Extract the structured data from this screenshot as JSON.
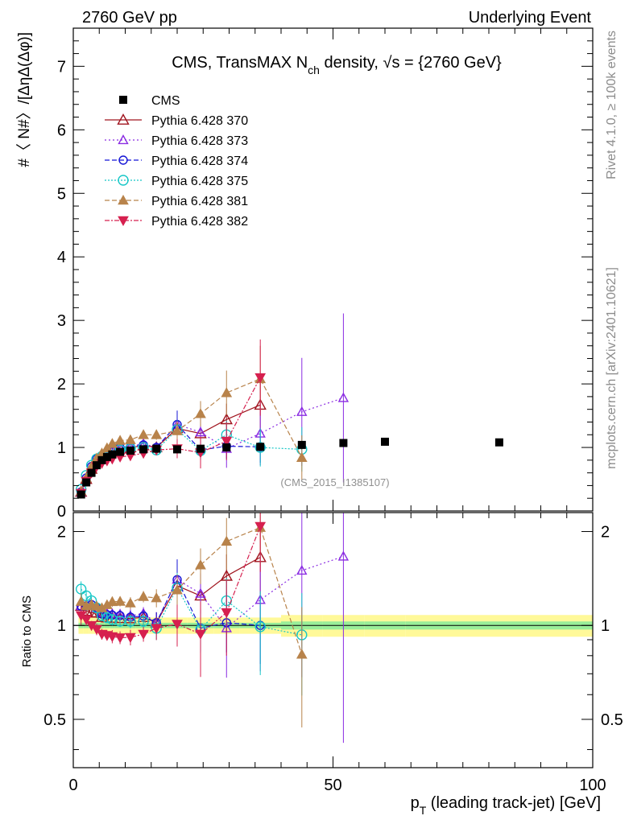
{
  "header": {
    "left": "2760 GeV pp",
    "right": "Underlying Event"
  },
  "side_labels": {
    "top": "Rivet 4.1.0, ≥ 100k events",
    "bottom": "mcplots.cern.ch [arXiv:2401.10621]"
  },
  "chart_data": {
    "type": "scatter",
    "title": "CMS, TransMAX N",
    "title_sub": "ch",
    "title_tail": " density, √s = {2760 GeV}",
    "ylabel": "#〈 N#〉/[ΔηΔ(Δφ)]",
    "xlabel": "p",
    "xlabel_sub": "T",
    "xlabel_tail": " (leading track-jet) [GeV]",
    "ratio_ylabel": "Ratio to CMS",
    "analysis_tag": "(CMS_2015_I1385107)",
    "xlim": [
      0,
      100
    ],
    "ylim": [
      0,
      7.6
    ],
    "ratio_ylim": [
      0.35,
      2.3
    ],
    "x_ticks": [
      "0",
      "50",
      "100"
    ],
    "y_ticks": [
      "0",
      "1",
      "2",
      "3",
      "4",
      "5",
      "6",
      "7"
    ],
    "ratio_ticks": [
      "0.5",
      "1",
      "2"
    ],
    "data": {
      "name": "CMS",
      "color": "#000000",
      "x": [
        1.5,
        2.5,
        3.5,
        4.5,
        5.5,
        6.5,
        7.5,
        9,
        11,
        13.5,
        16,
        20,
        24.5,
        29.5,
        36,
        44,
        52,
        60,
        82
      ],
      "y": [
        0.26,
        0.45,
        0.6,
        0.72,
        0.8,
        0.85,
        0.89,
        0.93,
        0.95,
        0.97,
        0.98,
        0.97,
        0.98,
        1.0,
        1.01,
        1.04,
        1.07,
        1.09,
        1.08
      ]
    },
    "band_edges": [
      1.0,
      2.0,
      3.0,
      4.0,
      5.0,
      6.0,
      7.0,
      8.0,
      10.0,
      12.0,
      15.0,
      17.0,
      22.0,
      27.0,
      32.0,
      40.0,
      48.0,
      56.0,
      64.0,
      100.0
    ],
    "band_stat": [
      0.02,
      0.02,
      0.02,
      0.02,
      0.02,
      0.02,
      0.02,
      0.02,
      0.02,
      0.02,
      0.02,
      0.02,
      0.02,
      0.02,
      0.02,
      0.03,
      0.03,
      0.03,
      0.03
    ],
    "band_total": [
      0.06,
      0.06,
      0.06,
      0.06,
      0.06,
      0.06,
      0.06,
      0.06,
      0.06,
      0.06,
      0.06,
      0.06,
      0.06,
      0.06,
      0.06,
      0.08,
      0.08,
      0.08,
      0.08
    ],
    "series": [
      {
        "name": "Pythia 6.428 370",
        "color": "#a0141e",
        "marker": "tri-open",
        "dash": "",
        "msize": 13,
        "x": [
          1.5,
          2.5,
          3.5,
          4.5,
          5.5,
          6.5,
          7.5,
          9,
          11,
          13.5,
          16,
          20,
          24.5,
          29.5,
          36
        ],
        "y": [
          0.3,
          0.5,
          0.66,
          0.79,
          0.85,
          0.9,
          0.94,
          0.98,
          1.0,
          1.03,
          1.0,
          1.3,
          1.22,
          1.44,
          1.67
        ],
        "err": [
          0.02,
          0.02,
          0.02,
          0.03,
          0.03,
          0.03,
          0.04,
          0.04,
          0.05,
          0.05,
          0.08,
          0.15,
          0.15,
          0.25,
          0.4
        ]
      },
      {
        "name": "Pythia 6.428 373",
        "color": "#8a2be2",
        "marker": "tri-open",
        "dash": "2,3",
        "msize": 11,
        "x": [
          1.5,
          2.5,
          3.5,
          4.5,
          5.5,
          6.5,
          7.5,
          9,
          11,
          13.5,
          16,
          20,
          24.5,
          29.5,
          36,
          44,
          52
        ],
        "y": [
          0.3,
          0.52,
          0.7,
          0.82,
          0.88,
          0.93,
          0.97,
          1.01,
          1.02,
          1.06,
          1.0,
          1.36,
          1.24,
          0.98,
          1.22,
          1.56,
          1.78
        ],
        "err": [
          0.02,
          0.02,
          0.02,
          0.03,
          0.03,
          0.03,
          0.04,
          0.04,
          0.05,
          0.05,
          0.08,
          0.18,
          0.2,
          0.3,
          0.5,
          0.85,
          1.33
        ]
      },
      {
        "name": "Pythia 6.428 374",
        "color": "#1515d6",
        "marker": "circ-open",
        "dash": "6,3",
        "msize": 10,
        "x": [
          1.5,
          2.5,
          3.5,
          4.5,
          5.5,
          6.5,
          7.5,
          9,
          11,
          13.5,
          16,
          20,
          24.5,
          29.5,
          36
        ],
        "y": [
          0.3,
          0.52,
          0.7,
          0.82,
          0.87,
          0.92,
          0.96,
          1.0,
          1.01,
          1.04,
          1.0,
          1.36,
          0.96,
          1.02,
          1.01
        ],
        "err": [
          0.02,
          0.02,
          0.02,
          0.03,
          0.03,
          0.03,
          0.04,
          0.04,
          0.05,
          0.05,
          0.08,
          0.22,
          0.15,
          0.2,
          0.25
        ]
      },
      {
        "name": "Pythia 6.428 375",
        "color": "#17c7c7",
        "marker": "circ-open",
        "dash": "2,2",
        "msize": 12,
        "x": [
          1.5,
          2.5,
          3.5,
          4.5,
          5.5,
          6.5,
          7.5,
          9,
          11,
          13.5,
          16,
          20,
          24.5,
          29.5,
          36,
          44
        ],
        "y": [
          0.34,
          0.56,
          0.72,
          0.82,
          0.86,
          0.9,
          0.93,
          0.96,
          0.98,
          1.0,
          0.96,
          1.28,
          0.95,
          1.2,
          1.0,
          0.97
        ],
        "err": [
          0.02,
          0.02,
          0.02,
          0.03,
          0.03,
          0.03,
          0.04,
          0.04,
          0.05,
          0.05,
          0.08,
          0.15,
          0.15,
          0.22,
          0.3,
          0.35
        ]
      },
      {
        "name": "Pythia 6.428 381",
        "color": "#b8834b",
        "marker": "tri-fill",
        "dash": "6,3",
        "msize": 12,
        "x": [
          1.5,
          2.5,
          3.5,
          4.5,
          5.5,
          6.5,
          7.5,
          9,
          11,
          13.5,
          16,
          20,
          24.5,
          29.5,
          36,
          44
        ],
        "y": [
          0.31,
          0.52,
          0.7,
          0.83,
          0.91,
          0.99,
          1.06,
          1.11,
          1.12,
          1.2,
          1.2,
          1.26,
          1.53,
          1.86,
          2.08,
          0.84
        ],
        "err": [
          0.02,
          0.02,
          0.02,
          0.03,
          0.03,
          0.03,
          0.04,
          0.04,
          0.05,
          0.05,
          0.08,
          0.15,
          0.2,
          0.35,
          0.52,
          0.35
        ]
      },
      {
        "name": "Pythia 6.428 382",
        "color": "#d6204f",
        "marker": "tri-down",
        "dash": "6,2,2,2",
        "msize": 12,
        "x": [
          1.5,
          2.5,
          3.5,
          4.5,
          5.5,
          6.5,
          7.5,
          9,
          11,
          13.5,
          16,
          20,
          24.5,
          29.5,
          36
        ],
        "y": [
          0.28,
          0.47,
          0.6,
          0.7,
          0.75,
          0.79,
          0.82,
          0.85,
          0.87,
          0.91,
          0.96,
          0.98,
          0.92,
          1.1,
          2.1
        ],
        "err": [
          0.02,
          0.02,
          0.02,
          0.03,
          0.03,
          0.03,
          0.04,
          0.04,
          0.05,
          0.05,
          0.08,
          0.15,
          0.25,
          0.3,
          0.6
        ]
      }
    ]
  }
}
